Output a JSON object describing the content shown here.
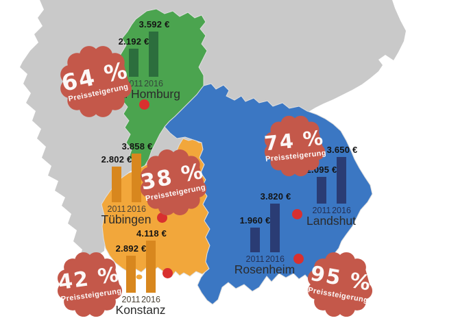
{
  "map": {
    "background_color": "#ffffff",
    "germany_color": "#c9c9c9",
    "marker_color": "#d8302f",
    "regions": [
      {
        "name": "Hessen",
        "color": "#4ba44f"
      },
      {
        "name": "Baden-Württemberg",
        "color": "#f2a73b"
      },
      {
        "name": "Bayern",
        "color": "#3b77c3"
      }
    ]
  },
  "badge": {
    "color": "#c4584a",
    "text_color": "#ffffff",
    "label": "Preissteigerung"
  },
  "chart_data": {
    "type": "bar",
    "title": "",
    "unit": "€",
    "years": [
      "2011",
      "2016"
    ],
    "series": [
      {
        "city": "Bad Homburg",
        "region": "Hessen",
        "values": [
          2192,
          3592
        ],
        "value_labels": [
          "2.192 €",
          "3.592 €"
        ],
        "increase_label": "64 %",
        "bar_color": "#2c6e3d"
      },
      {
        "city": "Tübingen",
        "region": "Baden-Württemberg",
        "values": [
          2802,
          3858
        ],
        "value_labels": [
          "2.802 €",
          "3.858 €"
        ],
        "increase_label": "38 %",
        "bar_color": "#d8871e"
      },
      {
        "city": "Konstanz",
        "region": "Baden-Württemberg",
        "values": [
          2892,
          4118
        ],
        "value_labels": [
          "2.892 €",
          "4.118 €"
        ],
        "increase_label": "42 %",
        "bar_color": "#d8871e"
      },
      {
        "city": "Rosenheim",
        "region": "Bayern",
        "values": [
          1960,
          3820
        ],
        "value_labels": [
          "1.960 €",
          "3.820 €"
        ],
        "increase_label": "95 %",
        "bar_color": "#2a3c74"
      },
      {
        "city": "Landshut",
        "region": "Bayern",
        "values": [
          2095,
          3650
        ],
        "value_labels": [
          "2.095 €",
          "3.650 €"
        ],
        "increase_label": "74 %",
        "bar_color": "#2a3c74"
      }
    ]
  }
}
